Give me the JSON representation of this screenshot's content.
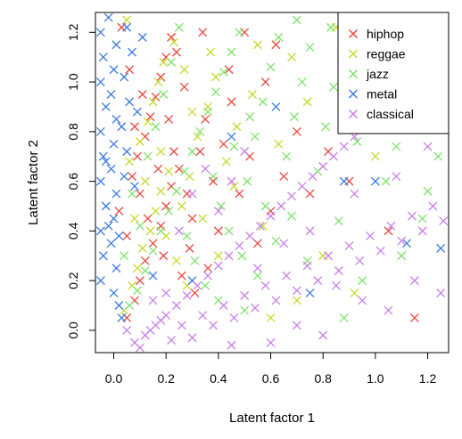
{
  "chart_data": {
    "type": "scatter",
    "title": "",
    "xlabel": "Latent factor 1",
    "ylabel": "Latent factor 2",
    "xlim": [
      -0.07,
      1.28
    ],
    "ylim": [
      -0.09,
      1.28
    ],
    "xticks": [
      0.0,
      0.2,
      0.4,
      0.6,
      0.8,
      1.0,
      1.2
    ],
    "yticks": [
      0.0,
      0.2,
      0.4,
      0.6,
      0.8,
      1.0,
      1.2
    ],
    "xtick_labels": [
      "0.0",
      "0.2",
      "0.4",
      "0.6",
      "0.8",
      "1.0",
      "1.2"
    ],
    "ytick_labels": [
      "0.0",
      "0.2",
      "0.4",
      "0.6",
      "0.8",
      "1.0",
      "1.2"
    ],
    "marker": "x",
    "grid": false,
    "legend": {
      "position": "top-right",
      "entries": [
        "hiphop",
        "reggae",
        "jazz",
        "metal",
        "classical"
      ]
    },
    "series": [
      {
        "name": "hiphop",
        "color": "#e8473f",
        "points": [
          [
            0.05,
            0.05
          ],
          [
            0.08,
            0.12
          ],
          [
            0.1,
            0.2
          ],
          [
            0.12,
            0.28
          ],
          [
            0.15,
            0.35
          ],
          [
            0.18,
            0.42
          ],
          [
            0.2,
            0.5
          ],
          [
            0.22,
            0.58
          ],
          [
            0.07,
            0.62
          ],
          [
            0.09,
            0.7
          ],
          [
            0.12,
            0.78
          ],
          [
            0.14,
            0.86
          ],
          [
            0.16,
            0.94
          ],
          [
            0.18,
            1.02
          ],
          [
            0.2,
            1.1
          ],
          [
            0.22,
            1.18
          ],
          [
            0.03,
            1.22
          ],
          [
            0.06,
            1.05
          ],
          [
            0.11,
            0.95
          ],
          [
            0.25,
            0.65
          ],
          [
            0.28,
            0.55
          ],
          [
            0.3,
            0.45
          ],
          [
            0.33,
            0.72
          ],
          [
            0.35,
            0.85
          ],
          [
            0.27,
            0.98
          ],
          [
            0.24,
            1.12
          ],
          [
            0.38,
            0.6
          ],
          [
            0.4,
            0.4
          ],
          [
            0.42,
            0.75
          ],
          [
            0.45,
            0.92
          ],
          [
            0.05,
            0.38
          ],
          [
            0.02,
            0.48
          ],
          [
            0.13,
            0.45
          ],
          [
            0.17,
            0.65
          ],
          [
            0.19,
            0.3
          ],
          [
            0.26,
            0.22
          ],
          [
            0.29,
            0.33
          ],
          [
            0.31,
            0.15
          ],
          [
            0.36,
            0.25
          ],
          [
            0.48,
            0.55
          ],
          [
            0.52,
            0.7
          ],
          [
            0.55,
            0.35
          ],
          [
            0.6,
            0.48
          ],
          [
            0.65,
            0.62
          ],
          [
            0.7,
            0.8
          ],
          [
            0.75,
            0.55
          ],
          [
            0.82,
            0.72
          ],
          [
            0.9,
            0.6
          ],
          [
            1.05,
            0.4
          ],
          [
            1.1,
            0.85
          ],
          [
            1.2,
            1.2
          ],
          [
            0.98,
            1.05
          ],
          [
            0.88,
            0.95
          ],
          [
            0.62,
            1.15
          ],
          [
            0.58,
            1.0
          ],
          [
            0.5,
            1.2
          ],
          [
            0.44,
            1.05
          ],
          [
            0.34,
            1.2
          ],
          [
            0.21,
            0.85
          ],
          [
            0.23,
            0.72
          ],
          [
            0.1,
            0.55
          ],
          [
            0.08,
            0.82
          ],
          [
            1.15,
            0.05
          ]
        ]
      },
      {
        "name": "reggae",
        "color": "#c7d92e",
        "points": [
          [
            0.04,
            0.08
          ],
          [
            0.07,
            0.18
          ],
          [
            0.09,
            0.25
          ],
          [
            0.11,
            0.33
          ],
          [
            0.14,
            0.4
          ],
          [
            0.16,
            0.48
          ],
          [
            0.18,
            0.56
          ],
          [
            0.21,
            0.64
          ],
          [
            0.06,
            0.68
          ],
          [
            0.1,
            0.76
          ],
          [
            0.13,
            0.84
          ],
          [
            0.15,
            0.92
          ],
          [
            0.17,
            1.0
          ],
          [
            0.19,
            1.08
          ],
          [
            0.23,
            1.16
          ],
          [
            0.05,
            1.25
          ],
          [
            0.26,
            0.5
          ],
          [
            0.29,
            0.62
          ],
          [
            0.32,
            0.78
          ],
          [
            0.36,
            0.9
          ],
          [
            0.39,
            1.02
          ],
          [
            0.43,
            0.68
          ],
          [
            0.47,
            0.82
          ],
          [
            0.53,
            0.95
          ],
          [
            0.12,
            0.6
          ],
          [
            0.2,
            0.38
          ],
          [
            0.24,
            0.28
          ],
          [
            0.28,
            0.18
          ],
          [
            0.34,
            0.45
          ],
          [
            0.4,
            0.3
          ],
          [
            0.46,
            0.58
          ],
          [
            0.57,
            0.42
          ],
          [
            0.63,
            0.75
          ],
          [
            0.68,
            1.1
          ],
          [
            0.74,
            0.92
          ],
          [
            0.8,
            0.3
          ],
          [
            0.92,
            0.15
          ],
          [
            1.0,
            0.7
          ],
          [
            1.08,
            1.0
          ],
          [
            0.85,
            1.22
          ],
          [
            0.55,
            1.15
          ],
          [
            0.37,
            1.12
          ],
          [
            0.27,
            1.05
          ],
          [
            0.18,
            0.72
          ],
          [
            0.08,
            0.45
          ],
          [
            0.3,
            0.88
          ],
          [
            0.6,
            0.05
          ],
          [
            0.7,
            0.12
          ]
        ]
      },
      {
        "name": "jazz",
        "color": "#7fe36d",
        "points": [
          [
            0.06,
            0.1
          ],
          [
            0.09,
            0.16
          ],
          [
            0.12,
            0.24
          ],
          [
            0.15,
            0.32
          ],
          [
            0.18,
            0.4
          ],
          [
            0.21,
            0.48
          ],
          [
            0.24,
            0.56
          ],
          [
            0.27,
            0.64
          ],
          [
            0.3,
            0.72
          ],
          [
            0.33,
            0.8
          ],
          [
            0.36,
            0.88
          ],
          [
            0.39,
            0.96
          ],
          [
            0.42,
            1.04
          ],
          [
            0.45,
            1.12
          ],
          [
            0.48,
            1.2
          ],
          [
            0.51,
            0.6
          ],
          [
            0.54,
            0.78
          ],
          [
            0.57,
            0.92
          ],
          [
            0.6,
            1.06
          ],
          [
            0.63,
            1.18
          ],
          [
            0.66,
            0.7
          ],
          [
            0.69,
            0.86
          ],
          [
            0.72,
            1.0
          ],
          [
            0.75,
            1.14
          ],
          [
            0.78,
            0.64
          ],
          [
            0.81,
            0.82
          ],
          [
            0.84,
            0.98
          ],
          [
            0.87,
            1.1
          ],
          [
            0.9,
            1.24
          ],
          [
            0.93,
            0.76
          ],
          [
            0.96,
            0.9
          ],
          [
            1.0,
            1.05
          ],
          [
            1.04,
            0.6
          ],
          [
            1.08,
            0.74
          ],
          [
            1.12,
            0.88
          ],
          [
            1.16,
            1.0
          ],
          [
            1.2,
            0.56
          ],
          [
            1.24,
            0.7
          ],
          [
            0.13,
            0.7
          ],
          [
            0.16,
            0.82
          ],
          [
            0.19,
            0.95
          ],
          [
            0.22,
            1.08
          ],
          [
            0.25,
            1.22
          ],
          [
            0.28,
            0.38
          ],
          [
            0.31,
            0.28
          ],
          [
            0.35,
            0.18
          ],
          [
            0.41,
            0.5
          ],
          [
            0.44,
            0.4
          ],
          [
            0.49,
            0.3
          ],
          [
            0.55,
            0.22
          ],
          [
            0.62,
            0.36
          ],
          [
            0.68,
            0.46
          ],
          [
            0.74,
            0.28
          ],
          [
            0.86,
            0.44
          ],
          [
            0.95,
            0.2
          ],
          [
            1.1,
            0.3
          ],
          [
            1.18,
            0.45
          ],
          [
            0.38,
            0.62
          ],
          [
            0.46,
            0.74
          ],
          [
            0.52,
            0.86
          ],
          [
            0.58,
            0.5
          ],
          [
            0.1,
            0.42
          ],
          [
            0.07,
            0.55
          ],
          [
            0.04,
            0.3
          ],
          [
            0.83,
            1.22
          ],
          [
            0.7,
            1.25
          ],
          [
            0.99,
            1.2
          ],
          [
            1.14,
            1.15
          ],
          [
            0.4,
            0.12
          ],
          [
            0.5,
            0.08
          ],
          [
            0.88,
            0.05
          ]
        ]
      },
      {
        "name": "metal",
        "color": "#3c7be0",
        "points": [
          [
            -0.05,
            0.2
          ],
          [
            -0.04,
            0.3
          ],
          [
            -0.05,
            0.4
          ],
          [
            -0.03,
            0.5
          ],
          [
            -0.05,
            0.6
          ],
          [
            -0.04,
            0.7
          ],
          [
            -0.05,
            0.8
          ],
          [
            -0.03,
            0.9
          ],
          [
            -0.05,
            1.0
          ],
          [
            -0.04,
            1.1
          ],
          [
            -0.05,
            1.2
          ],
          [
            -0.02,
            1.26
          ],
          [
            0.0,
            0.15
          ],
          [
            0.01,
            0.25
          ],
          [
            -0.01,
            0.35
          ],
          [
            0.0,
            0.45
          ],
          [
            0.01,
            0.55
          ],
          [
            -0.01,
            0.65
          ],
          [
            0.0,
            0.75
          ],
          [
            0.01,
            0.85
          ],
          [
            -0.01,
            0.95
          ],
          [
            0.0,
            1.05
          ],
          [
            0.01,
            1.15
          ],
          [
            0.02,
            0.1
          ],
          [
            0.03,
            0.05
          ],
          [
            0.04,
            0.62
          ],
          [
            0.05,
            0.72
          ],
          [
            0.03,
            0.82
          ],
          [
            0.06,
            0.92
          ],
          [
            0.04,
            1.02
          ],
          [
            0.07,
            1.12
          ],
          [
            0.05,
            1.22
          ],
          [
            0.08,
            0.58
          ],
          [
            0.09,
            0.88
          ],
          [
            0.11,
            1.18
          ],
          [
            -0.02,
            0.42
          ],
          [
            -0.03,
            0.68
          ],
          [
            0.02,
            0.38
          ],
          [
            0.15,
            0.22
          ],
          [
            0.3,
            0.2
          ],
          [
            0.45,
            0.78
          ],
          [
            0.62,
            0.9
          ],
          [
            0.88,
            0.6
          ],
          [
            1.0,
            0.6
          ],
          [
            1.12,
            0.35
          ],
          [
            1.25,
            0.33
          ],
          [
            0.75,
            0.15
          ]
        ]
      },
      {
        "name": "classical",
        "color": "#c77fe8",
        "points": [
          [
            0.08,
            -0.05
          ],
          [
            0.12,
            -0.02
          ],
          [
            0.16,
            0.02
          ],
          [
            0.2,
            0.06
          ],
          [
            0.24,
            0.1
          ],
          [
            0.28,
            0.14
          ],
          [
            0.32,
            0.18
          ],
          [
            0.36,
            0.22
          ],
          [
            0.4,
            0.26
          ],
          [
            0.44,
            0.3
          ],
          [
            0.48,
            0.34
          ],
          [
            0.52,
            0.38
          ],
          [
            0.56,
            0.42
          ],
          [
            0.6,
            0.46
          ],
          [
            0.64,
            0.5
          ],
          [
            0.68,
            0.54
          ],
          [
            0.72,
            0.58
          ],
          [
            0.76,
            0.62
          ],
          [
            0.8,
            0.66
          ],
          [
            0.84,
            0.7
          ],
          [
            0.88,
            0.74
          ],
          [
            0.92,
            0.78
          ],
          [
            0.96,
            0.82
          ],
          [
            1.0,
            0.86
          ],
          [
            0.1,
            -0.07
          ],
          [
            0.14,
            0.0
          ],
          [
            0.18,
            0.04
          ],
          [
            0.22,
            -0.04
          ],
          [
            0.26,
            0.02
          ],
          [
            0.3,
            -0.03
          ],
          [
            0.34,
            0.06
          ],
          [
            0.38,
            0.02
          ],
          [
            0.42,
            0.1
          ],
          [
            0.46,
            0.05
          ],
          [
            0.5,
            0.14
          ],
          [
            0.54,
            0.09
          ],
          [
            0.58,
            0.18
          ],
          [
            0.62,
            0.12
          ],
          [
            0.66,
            0.22
          ],
          [
            0.7,
            0.16
          ],
          [
            0.74,
            0.26
          ],
          [
            0.78,
            0.2
          ],
          [
            0.82,
            0.3
          ],
          [
            0.86,
            0.24
          ],
          [
            0.9,
            0.34
          ],
          [
            0.94,
            0.28
          ],
          [
            0.98,
            0.38
          ],
          [
            1.02,
            0.32
          ],
          [
            1.06,
            0.42
          ],
          [
            1.1,
            0.36
          ],
          [
            1.14,
            0.46
          ],
          [
            1.18,
            0.4
          ],
          [
            1.22,
            0.5
          ],
          [
            1.26,
            0.44
          ],
          [
            0.25,
            0.4
          ],
          [
            0.3,
            0.55
          ],
          [
            0.35,
            0.65
          ],
          [
            0.4,
            0.48
          ],
          [
            0.45,
            0.6
          ],
          [
            0.5,
            0.72
          ],
          [
            0.55,
            0.25
          ],
          [
            0.65,
            0.35
          ],
          [
            0.75,
            0.4
          ],
          [
            0.85,
            0.18
          ],
          [
            0.95,
            0.12
          ],
          [
            1.05,
            0.08
          ],
          [
            1.15,
            0.2
          ],
          [
            1.25,
            0.15
          ],
          [
            0.92,
            0.55
          ],
          [
            1.08,
            0.62
          ],
          [
            1.2,
            0.74
          ],
          [
            0.7,
            0.02
          ],
          [
            0.8,
            -0.02
          ],
          [
            0.6,
            -0.05
          ],
          [
            0.45,
            -0.06
          ],
          [
            0.2,
            0.15
          ],
          [
            0.15,
            0.12
          ],
          [
            0.05,
            0.0
          ],
          [
            1.12,
            0.95
          ],
          [
            1.22,
            1.05
          ]
        ]
      }
    ]
  }
}
